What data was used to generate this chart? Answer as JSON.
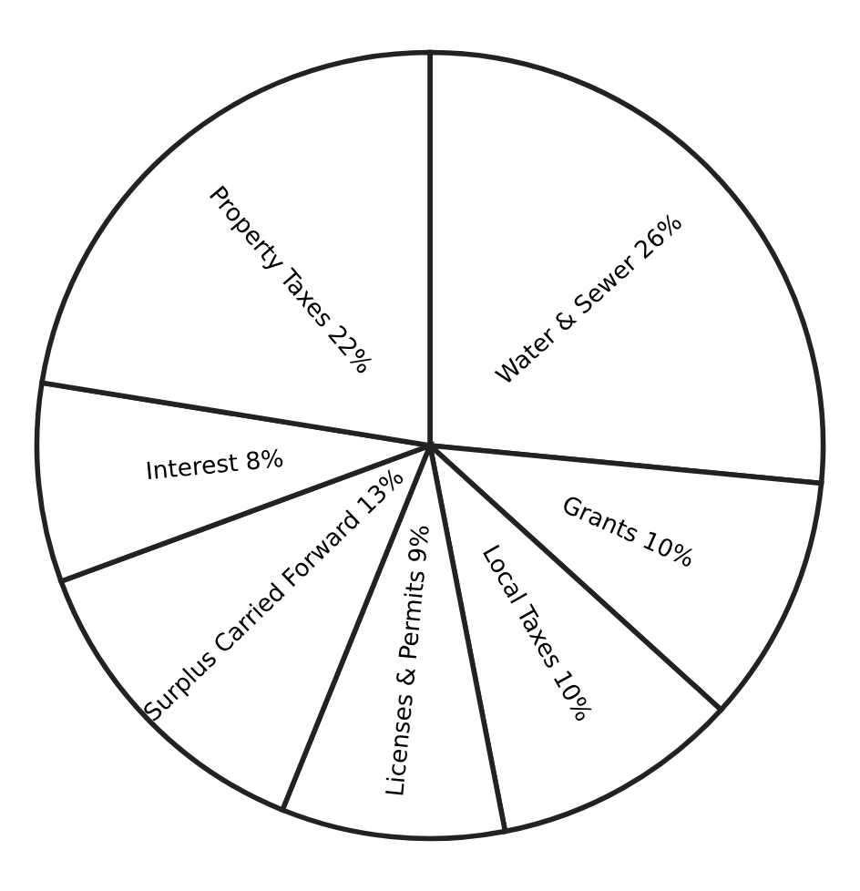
{
  "chart_data": {
    "type": "pie",
    "categories": [
      "Water & Sewer",
      "Grants",
      "Local Taxes",
      "Licenses & Permits",
      "Surplus Carried Forward",
      "Interest",
      "Property Taxes"
    ],
    "values": [
      26,
      10,
      10,
      9,
      13,
      8,
      22
    ],
    "value_labels": [
      "26%",
      "10%",
      "10%",
      "9%",
      "13%",
      "8%",
      "22%"
    ],
    "colors": [
      "#ffffff",
      "#ffffff",
      "#ffffff",
      "#ffffff",
      "#ffffff",
      "#ffffff",
      "#ffffff"
    ]
  }
}
